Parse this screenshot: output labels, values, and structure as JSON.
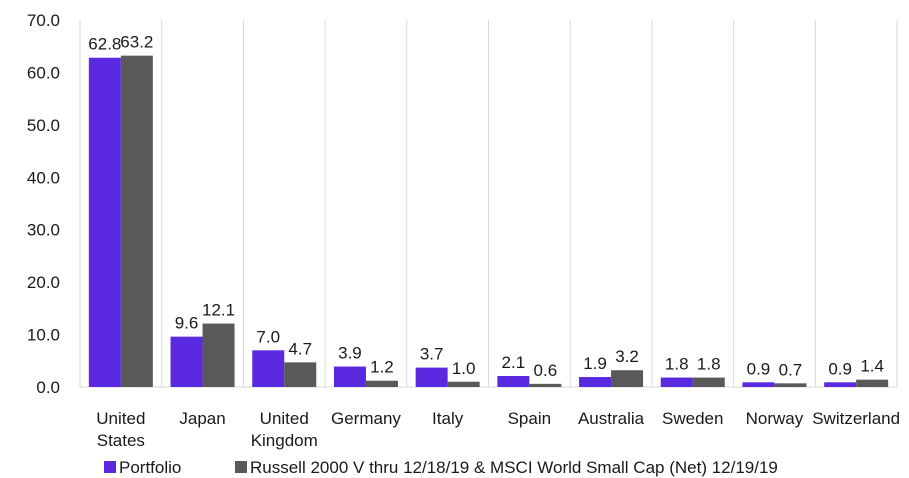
{
  "chart_data": {
    "type": "bar",
    "categories": [
      "United States",
      "Japan",
      "United Kingdom",
      "Germany",
      "Italy",
      "Spain",
      "Australia",
      "Sweden",
      "Norway",
      "Switzerland"
    ],
    "series": [
      {
        "name": "Portfolio",
        "color": "#5b2ae0",
        "values": [
          62.8,
          9.6,
          7.0,
          3.9,
          3.7,
          2.1,
          1.9,
          1.8,
          0.9,
          0.9
        ]
      },
      {
        "name": "Russell 2000 V thru 12/18/19 & MSCI World Small Cap (Net) 12/19/19",
        "color": "#595959",
        "values": [
          63.2,
          12.1,
          4.7,
          1.2,
          1.0,
          0.6,
          3.2,
          1.8,
          0.7,
          1.4
        ]
      }
    ],
    "yticks": [
      "0.0",
      "10.0",
      "20.0",
      "30.0",
      "40.0",
      "50.0",
      "60.0",
      "70.0"
    ],
    "ylim": [
      0,
      70
    ],
    "grid": "vertical category separators",
    "legend_position": "bottom",
    "title": "",
    "xlabel": "",
    "ylabel": ""
  }
}
